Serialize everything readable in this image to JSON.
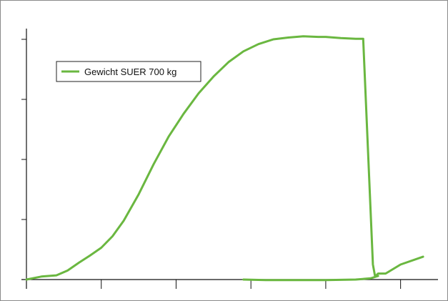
{
  "chart_data": {
    "type": "line",
    "title": "",
    "xlabel": "",
    "ylabel": "",
    "xlim": [
      0,
      5.5
    ],
    "ylim": [
      0,
      4
    ],
    "x_ticks": [
      0,
      1,
      2,
      3,
      4,
      5
    ],
    "y_ticks": [
      0,
      1,
      2,
      3,
      4
    ],
    "tick_labels_shown": false,
    "grid": false,
    "legend_position": "top-left",
    "series": [
      {
        "name": "Gewicht SUER 700 kg",
        "color": "#6ab740",
        "points": [
          [
            0.0,
            0.0
          ],
          [
            0.2,
            0.05
          ],
          [
            0.4,
            0.07
          ],
          [
            0.55,
            0.15
          ],
          [
            0.7,
            0.28
          ],
          [
            0.85,
            0.4
          ],
          [
            1.0,
            0.53
          ],
          [
            1.15,
            0.72
          ],
          [
            1.3,
            0.98
          ],
          [
            1.5,
            1.42
          ],
          [
            1.7,
            1.92
          ],
          [
            1.9,
            2.38
          ],
          [
            2.1,
            2.76
          ],
          [
            2.3,
            3.1
          ],
          [
            2.5,
            3.38
          ],
          [
            2.7,
            3.62
          ],
          [
            2.9,
            3.8
          ],
          [
            3.1,
            3.92
          ],
          [
            3.3,
            4.0
          ],
          [
            3.5,
            4.03
          ],
          [
            3.7,
            4.05
          ],
          [
            3.9,
            4.04
          ],
          [
            4.0,
            4.04
          ],
          [
            4.2,
            4.02
          ],
          [
            4.4,
            4.01
          ],
          [
            4.5,
            4.01
          ],
          [
            4.63,
            0.25
          ],
          [
            4.66,
            0.05
          ],
          [
            4.7,
            0.1
          ],
          [
            4.8,
            0.1
          ],
          [
            5.0,
            0.25
          ],
          [
            5.3,
            0.38
          ]
        ]
      },
      {
        "name": "",
        "color": "#6ab740",
        "points": [
          [
            2.9,
            0.0
          ],
          [
            3.2,
            -0.01
          ],
          [
            3.6,
            -0.01
          ],
          [
            4.0,
            -0.01
          ],
          [
            4.4,
            0.0
          ],
          [
            4.6,
            0.02
          ],
          [
            4.7,
            0.06
          ]
        ]
      }
    ]
  }
}
